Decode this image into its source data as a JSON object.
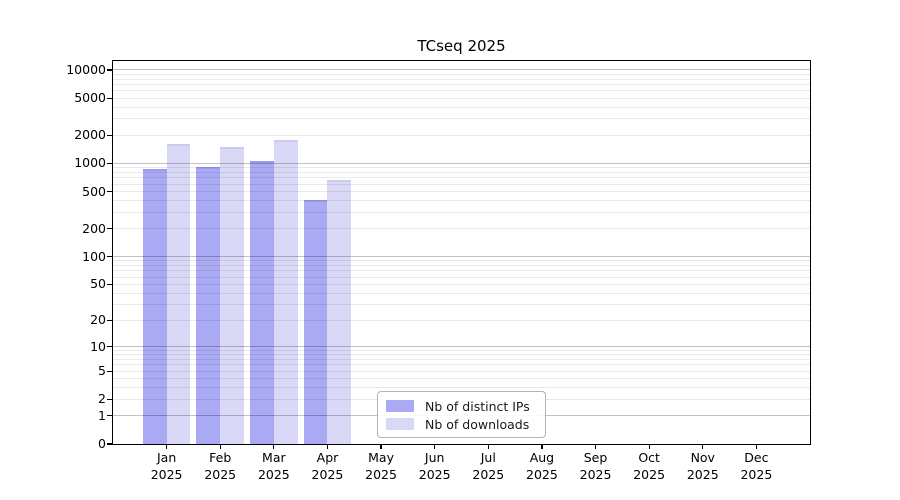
{
  "title": "TCseq 2025",
  "chart_data": {
    "type": "bar",
    "title": "TCseq 2025",
    "categories": [
      "Jan 2025",
      "Feb 2025",
      "Mar 2025",
      "Apr 2025",
      "May 2025",
      "Jun 2025",
      "Jul 2025",
      "Aug 2025",
      "Sep 2025",
      "Oct 2025",
      "Nov 2025",
      "Dec 2025"
    ],
    "series": [
      {
        "name": "Nb of distinct IPs",
        "color": "#a9a9f4",
        "edge_color": "#9a9aef",
        "values": [
          880,
          925,
          1075,
          410,
          null,
          null,
          null,
          null,
          null,
          null,
          null,
          null
        ]
      },
      {
        "name": "Nb of downloads",
        "color": "#d9d9f7",
        "edge_color": "#cacaf3",
        "values": [
          1625,
          1495,
          1790,
          670,
          null,
          null,
          null,
          null,
          null,
          null,
          null,
          null
        ]
      }
    ],
    "xlabel": "",
    "ylabel": "",
    "yscale": "log10(1+x)",
    "ylim": [
      0,
      12500
    ],
    "yticks": [
      0,
      1,
      2,
      5,
      10,
      20,
      50,
      100,
      200,
      500,
      1000,
      2000,
      5000,
      10000
    ],
    "grid": "horizontal major+minor, drawn over bars",
    "legend_position": "inside lower-center",
    "colors": {
      "major_gridline": "#c2c2c2",
      "minor_gridline": "#ebebeb",
      "axis": "#000000",
      "background": "#ffffff"
    }
  }
}
